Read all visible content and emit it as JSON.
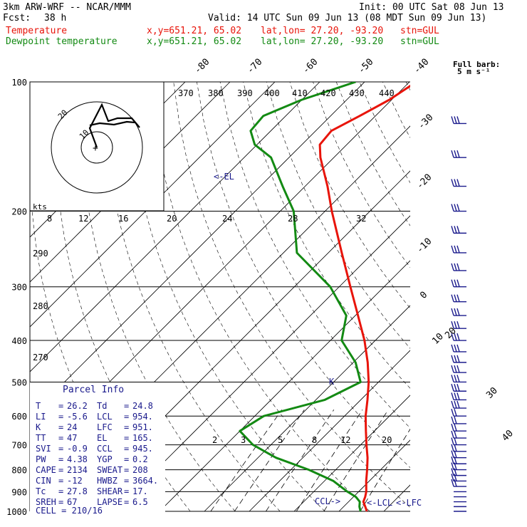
{
  "header": {
    "model": "3km ARW-WRF -- NCAR/MMM",
    "init": "Init: 00 UTC Sat 08 Jun 13",
    "fcst_label": "Fcst:",
    "fcst_value": "38 h",
    "valid": "Valid: 14 UTC Sun 09 Jun 13 (08 MDT Sun 09 Jun 13)",
    "line1_name": "Temperature",
    "line1_xy": "x,y=651.21, 65.02",
    "line1_latlon": "lat,lon= 27.20, -93.20",
    "line1_stn": "stn=GUL",
    "line2_name": "Dewpoint temperature",
    "line2_xy": "x,y=651.21, 65.02",
    "line2_latlon": "lat,lon= 27.20, -93.20",
    "line2_stn": "stn=GUL",
    "barb_legend_1": "Full barb:",
    "barb_legend_2": "5 m s⁻¹"
  },
  "colors": {
    "temperature": "#e8140a",
    "dewpoint": "#138a13",
    "text_blue": "#1a1a8c"
  },
  "chart_data": {
    "type": "line",
    "y_axis": {
      "label": "",
      "scale": "log",
      "range": [
        1000,
        100
      ],
      "ticks": [
        100,
        200,
        300,
        400,
        500,
        600,
        700,
        800,
        900,
        1000
      ]
    },
    "isotherms_top": [
      "-80",
      "-70",
      "-60",
      "-50",
      "-40"
    ],
    "isotherms_right": [
      "-30",
      "-20",
      "-10",
      "0",
      "10",
      "20",
      "30",
      "40"
    ],
    "theta_labels": [
      "370",
      "380",
      "390",
      "400",
      "410",
      "420",
      "430",
      "440"
    ],
    "theta_labels_left": [
      "290",
      "280",
      "270"
    ],
    "mixing_ratio_labels": [
      "2",
      "3",
      "5",
      "8",
      "12",
      "20"
    ],
    "series": [
      {
        "name": "Temperature",
        "points": [
          [
            1000,
            26.2
          ],
          [
            975,
            24.8
          ],
          [
            950,
            23.3
          ],
          [
            925,
            22.6
          ],
          [
            900,
            21.7
          ],
          [
            850,
            19.3
          ],
          [
            800,
            17.0
          ],
          [
            750,
            14.4
          ],
          [
            700,
            11.3
          ],
          [
            650,
            8.1
          ],
          [
            600,
            4.7
          ],
          [
            550,
            1.5
          ],
          [
            500,
            -2.2
          ],
          [
            450,
            -6.8
          ],
          [
            400,
            -12.4
          ],
          [
            350,
            -19.4
          ],
          [
            300,
            -27.5
          ],
          [
            250,
            -37.0
          ],
          [
            200,
            -48.5
          ],
          [
            175,
            -55.0
          ],
          [
            150,
            -63.0
          ],
          [
            140,
            -66.0
          ],
          [
            130,
            -66.5
          ],
          [
            120,
            -63.5
          ],
          [
            110,
            -60.5
          ],
          [
            100,
            -58.5
          ]
        ]
      },
      {
        "name": "Dewpoint temperature",
        "points": [
          [
            1000,
            24.8
          ],
          [
            975,
            23.5
          ],
          [
            950,
            22.5
          ],
          [
            925,
            20.5
          ],
          [
            900,
            17.5
          ],
          [
            850,
            12.0
          ],
          [
            800,
            4.0
          ],
          [
            750,
            -6.0
          ],
          [
            700,
            -14.0
          ],
          [
            650,
            -20.0
          ],
          [
            600,
            -18.0
          ],
          [
            550,
            -8.0
          ],
          [
            500,
            -4.0
          ],
          [
            450,
            -9.5
          ],
          [
            400,
            -17.5
          ],
          [
            350,
            -22.0
          ],
          [
            300,
            -32.0
          ],
          [
            250,
            -47.0
          ],
          [
            200,
            -57.0
          ],
          [
            175,
            -65.0
          ],
          [
            150,
            -74.0
          ],
          [
            140,
            -80.5
          ],
          [
            130,
            -84.5
          ],
          [
            120,
            -85.0
          ],
          [
            110,
            -80.0
          ],
          [
            100,
            -72.0
          ]
        ]
      }
    ],
    "annotations": [
      "<-EL",
      "CCL->",
      "<-LCL",
      "<-LFC"
    ]
  },
  "hodograph": {
    "units": "kts",
    "ring_labels": [
      "20",
      "10"
    ],
    "speed_ticks": [
      "8",
      "12",
      "16",
      "20",
      "24",
      "28",
      "32"
    ],
    "plus_mark": "+"
  },
  "parcel_info": {
    "title": "Parcel Info",
    "rows": [
      [
        "T",
        "26.2",
        "Td",
        "24.8"
      ],
      [
        "LI",
        "-5.6",
        "LCL",
        "954."
      ],
      [
        "K",
        "24",
        "LFC",
        "951."
      ],
      [
        "TT",
        "47",
        "EL",
        "165."
      ],
      [
        "SVI",
        "-0.9",
        "CCL",
        "945."
      ],
      [
        "PW",
        "4.38",
        "YGP",
        "0.2"
      ],
      [
        "CAPE",
        "2134",
        "SWEAT",
        "208"
      ],
      [
        "CIN",
        "-12",
        "HWBZ",
        "3664."
      ],
      [
        "Tc",
        "27.8",
        "SHEAR",
        "17."
      ],
      [
        "SREH",
        "67",
        "LAPSE",
        "6.5"
      ]
    ],
    "cell": "CELL = 210/16"
  }
}
